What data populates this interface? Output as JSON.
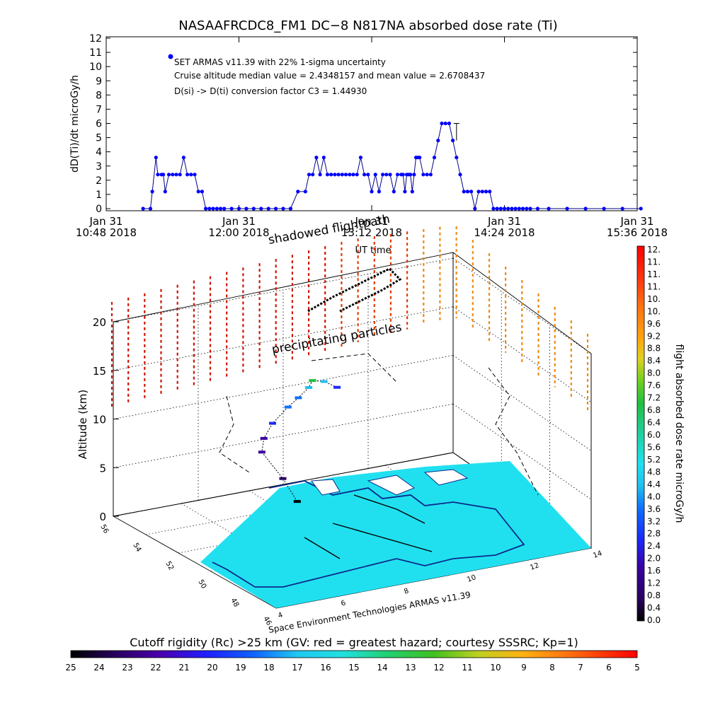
{
  "chart_data": [
    {
      "type": "line",
      "title": "NASAAFRCDC8_FM1 DC−8    N817NA absorbed dose rate (Ti)",
      "xlabel": "UT time",
      "ylabel": "dD(Ti)/dt microGy/h",
      "ylim": [
        0,
        12
      ],
      "yticks": [
        "0",
        "1",
        "2",
        "3",
        "4",
        "5",
        "6",
        "7",
        "8",
        "9",
        "10",
        "11",
        "12"
      ],
      "xticks": [
        {
          "line1": "Jan 31",
          "line2": "10:48 2018",
          "minutes": 0
        },
        {
          "line1": "Jan 31",
          "line2": "12:00 2018",
          "minutes": 72
        },
        {
          "line1": "Jan 31",
          "line2": "13:12 2018",
          "minutes": 144
        },
        {
          "line1": "Jan 31",
          "line2": "14:24 2018",
          "minutes": 216
        },
        {
          "line1": "Jan 31",
          "line2": "15:36 2018",
          "minutes": 288
        }
      ],
      "legend": {
        "entry": "SET ARMAS v11.39 with 22% 1-sigma uncertainty",
        "median_note": "Cruise altitude median value = 2.4348157 and mean value = 2.6708437",
        "conversion_note": "D(si) -> D(ti) conversion factor C3 = 1.44930",
        "placement": "top-left",
        "color": "#0000ff"
      },
      "series": [
        {
          "name": "SET ARMAS v11.39 with 22% 1-sigma uncertainty",
          "color": "#0000ff",
          "x": [
            20,
            24,
            25,
            27,
            28,
            30,
            31,
            32,
            34,
            36,
            38,
            40,
            42,
            44,
            46,
            48,
            50,
            52,
            54,
            56,
            58,
            60,
            62,
            64,
            68,
            72,
            76,
            80,
            84,
            88,
            92,
            96,
            100,
            104,
            108,
            110,
            112,
            114,
            116,
            118,
            120,
            122,
            124,
            126,
            128,
            130,
            132,
            134,
            136,
            138,
            140,
            142,
            144,
            146,
            148,
            150,
            152,
            154,
            156,
            158,
            160,
            161,
            162,
            163,
            164,
            165,
            166,
            167,
            168,
            169,
            170,
            172,
            174,
            176,
            178,
            180,
            182,
            184,
            186,
            188,
            190,
            192,
            194,
            196,
            198,
            200,
            202,
            204,
            206,
            208,
            210,
            212,
            214,
            216,
            218,
            220,
            222,
            224,
            226,
            228,
            230,
            234,
            240,
            250,
            260,
            270,
            280,
            290
          ],
          "y": [
            0,
            0,
            1.2,
            3.6,
            2.4,
            2.4,
            2.4,
            1.2,
            2.4,
            2.4,
            2.4,
            2.4,
            3.6,
            2.4,
            2.4,
            2.4,
            1.2,
            1.2,
            0,
            0,
            0,
            0,
            0,
            0,
            0,
            0,
            0,
            0,
            0,
            0,
            0,
            0,
            0,
            1.2,
            1.2,
            2.4,
            2.4,
            3.6,
            2.4,
            3.6,
            2.4,
            2.4,
            2.4,
            2.4,
            2.4,
            2.4,
            2.4,
            2.4,
            2.4,
            3.6,
            2.4,
            2.4,
            1.2,
            2.4,
            1.2,
            2.4,
            2.4,
            2.4,
            1.2,
            2.4,
            2.4,
            2.4,
            1.2,
            2.4,
            2.4,
            2.4,
            1.2,
            2.4,
            3.6,
            3.6,
            3.6,
            2.4,
            2.4,
            2.4,
            3.6,
            4.8,
            6.0,
            6.0,
            6.0,
            4.8,
            3.6,
            2.4,
            1.2,
            1.2,
            1.2,
            0,
            1.2,
            1.2,
            1.2,
            1.2,
            0,
            0,
            0,
            0,
            0,
            0,
            0,
            0,
            0,
            0,
            0,
            0,
            0,
            0,
            0,
            0,
            0,
            0
          ]
        }
      ],
      "error_bar": {
        "minutes": 190,
        "low": 4.8,
        "high": 6.0
      }
    },
    {
      "type": "scatter",
      "title": "",
      "annotations": [
        "shadowed flightpath",
        "precipitating particles"
      ],
      "zlabel": "Altitude (km)",
      "zticks": [
        "0",
        "5",
        "10",
        "15",
        "20"
      ],
      "zlim": [
        0,
        20
      ],
      "lat_ticks": [
        "56",
        "54",
        "52",
        "50",
        "48",
        "46"
      ],
      "lon_ticks": [
        "4",
        "6",
        "8",
        "10",
        "12",
        "14"
      ],
      "credit": "Space Environment Technologies ARMAS v11.39",
      "flight_path_points": [
        {
          "lat": 52.0,
          "lon": 7.6,
          "alt": 3.0,
          "dose": 0.4
        },
        {
          "lat": 52.5,
          "lon": 7.4,
          "alt": 5.0,
          "dose": 0.8
        },
        {
          "lat": 53.0,
          "lon": 7.0,
          "alt": 7.5,
          "dose": 1.2
        },
        {
          "lat": 53.3,
          "lon": 7.2,
          "alt": 8.5,
          "dose": 1.6
        },
        {
          "lat": 53.6,
          "lon": 7.6,
          "alt": 9.5,
          "dose": 2.4
        },
        {
          "lat": 53.9,
          "lon": 8.2,
          "alt": 10.5,
          "dose": 2.8
        },
        {
          "lat": 54.1,
          "lon": 8.6,
          "alt": 11.0,
          "dose": 3.2
        },
        {
          "lat": 54.3,
          "lon": 9.0,
          "alt": 11.6,
          "dose": 4.4
        },
        {
          "lat": 54.5,
          "lon": 9.2,
          "alt": 12.0,
          "dose": 7.6
        },
        {
          "lat": 54.4,
          "lon": 9.5,
          "alt": 11.8,
          "dose": 3.6
        },
        {
          "lat": 54.2,
          "lon": 9.8,
          "alt": 11.2,
          "dose": 2.4
        }
      ],
      "precipitating_grid_note": "dashed vertical dose markers above flightpath"
    },
    {
      "type": "heatmap",
      "title": "",
      "colorbar_label": "flight absorbed dose rate microGy/h",
      "colorbar_ticks": [
        "12.",
        "11.",
        "11.",
        "11.",
        "10.",
        "10.",
        "9.6",
        "9.2",
        "8.8",
        "8.4",
        "8.0",
        "7.6",
        "7.2",
        "6.8",
        "6.4",
        "6.0",
        "5.6",
        "5.2",
        "4.8",
        "4.4",
        "4.0",
        "3.6",
        "3.2",
        "2.8",
        "2.4",
        "2.0",
        "1.6",
        "1.2",
        "0.8",
        "0.4",
        "0.0"
      ],
      "range": [
        0,
        12
      ]
    },
    {
      "type": "heatmap",
      "title": "",
      "colorbar_label": "Cutoff rigidity (Rc) >25 km (GV: red = greatest hazard; courtesy SSSRC; Kp=1)",
      "colorbar_ticks": [
        "25",
        "24",
        "23",
        "22",
        "21",
        "20",
        "19",
        "18",
        "17",
        "16",
        "15",
        "14",
        "13",
        "12",
        "11",
        "10",
        "9",
        "8",
        "7",
        "6",
        "5"
      ],
      "range": [
        25,
        5
      ]
    }
  ]
}
